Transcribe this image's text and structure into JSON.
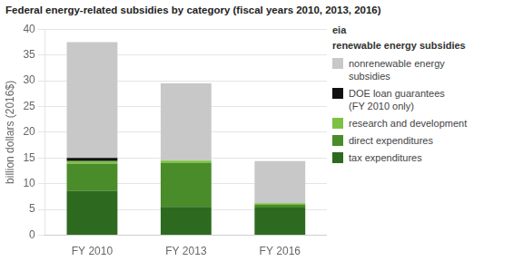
{
  "chart_data": {
    "type": "bar",
    "title": "Federal energy-related subsidies by category (fiscal years 2010, 2013, 2016)",
    "ylabel": "billion dollars (2016$)",
    "categories": [
      "FY 2010",
      "FY 2013",
      "FY 2016"
    ],
    "series": [
      {
        "name": "tax expenditures",
        "color": "#2d6a1f",
        "values": [
          8.6,
          5.5,
          5.4
        ]
      },
      {
        "name": "direct expenditures",
        "color": "#4a8c2a",
        "values": [
          5.3,
          8.5,
          0.5
        ]
      },
      {
        "name": "research and development",
        "color": "#7dc142",
        "values": [
          0.5,
          0.5,
          0.3
        ]
      },
      {
        "name": "DOE loan guarantees\n(FY 2010 only)",
        "color": "#111111",
        "values": [
          0.6,
          0.0,
          0.0
        ]
      },
      {
        "name": "nonrenewable energy\nsubsidies",
        "color": "#c8c8c8",
        "values": [
          22.5,
          15.0,
          8.2
        ]
      }
    ],
    "stacked": true,
    "ylim": [
      0,
      40
    ],
    "yticks": [
      0,
      5,
      10,
      15,
      20,
      25,
      30,
      35,
      40
    ],
    "grid": true,
    "legend": "right",
    "annotations": [
      "eia",
      "renewable energy subsidies"
    ]
  }
}
